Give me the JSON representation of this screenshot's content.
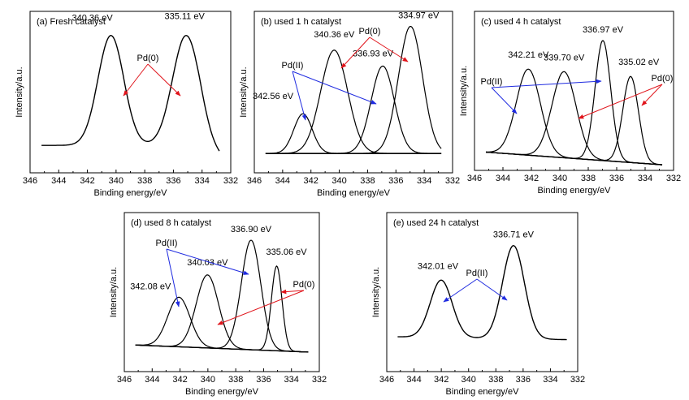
{
  "chart_data": [
    {
      "type": "line",
      "panel_label": "(a) Fresh catalyst",
      "xlabel": "Binding energy/eV",
      "ylabel": "Intensity/a.u.",
      "xlim": [
        346,
        332
      ],
      "xticks": [
        "346",
        "344",
        "342",
        "340",
        "338",
        "336",
        "334",
        "332"
      ],
      "x_reversed": true,
      "grid": false,
      "peaks": [
        {
          "center": 340.36,
          "label": "340.36 eV"
        },
        {
          "center": 335.11,
          "label": "335.11 eV"
        }
      ],
      "annotations": [
        {
          "text": "Pd(0)",
          "color": "#e0141b",
          "points_to": [
            340.36,
            335.11
          ]
        }
      ]
    },
    {
      "type": "line",
      "panel_label": "(b) used 1 h catalyst",
      "xlabel": "Binding energy/eV",
      "ylabel": "Intensity/a.u.",
      "xlim": [
        346,
        332
      ],
      "xticks": [
        "346",
        "344",
        "342",
        "340",
        "338",
        "336",
        "334",
        "332"
      ],
      "x_reversed": true,
      "grid": false,
      "peaks": [
        {
          "center": 342.56,
          "label": "342.56 eV",
          "state": "Pd(II)"
        },
        {
          "center": 340.36,
          "label": "340.36 eV",
          "state": "Pd(0)"
        },
        {
          "center": 336.93,
          "label": "336.93 eV",
          "state": "Pd(II)"
        },
        {
          "center": 334.97,
          "label": "334.97 eV",
          "state": "Pd(0)"
        }
      ],
      "annotations": [
        {
          "text": "Pd(II)",
          "color": "#1f2be0"
        },
        {
          "text": "Pd(0)",
          "color": "#e0141b"
        }
      ]
    },
    {
      "type": "line",
      "panel_label": "(c) used 4 h catalyst",
      "xlabel": "Binding energy/eV",
      "ylabel": "Intensity/a.u.",
      "xlim": [
        346,
        332
      ],
      "xticks": [
        "346",
        "344",
        "342",
        "340",
        "338",
        "336",
        "334",
        "332"
      ],
      "x_reversed": true,
      "grid": false,
      "peaks": [
        {
          "center": 342.21,
          "label": "342.21 eV",
          "state": "Pd(II)"
        },
        {
          "center": 339.7,
          "label": "339.70 eV",
          "state": "Pd(0)"
        },
        {
          "center": 336.97,
          "label": "336.97 eV",
          "state": "Pd(II)"
        },
        {
          "center": 335.02,
          "label": "335.02 eV",
          "state": "Pd(0)"
        }
      ],
      "annotations": [
        {
          "text": "Pd(II)",
          "color": "#1f2be0"
        },
        {
          "text": "Pd(0)",
          "color": "#e0141b"
        }
      ]
    },
    {
      "type": "line",
      "panel_label": "(d) used 8 h catalyst",
      "xlabel": "Binding energy/eV",
      "ylabel": "Intensity/a.u.",
      "xlim": [
        346,
        332
      ],
      "xticks": [
        "346",
        "344",
        "342",
        "340",
        "338",
        "336",
        "334",
        "332"
      ],
      "x_reversed": true,
      "grid": false,
      "peaks": [
        {
          "center": 342.08,
          "label": "342.08 eV",
          "state": "Pd(II)"
        },
        {
          "center": 340.03,
          "label": "340.03 eV",
          "state": "Pd(0)"
        },
        {
          "center": 336.9,
          "label": "336.90 eV",
          "state": "Pd(II)"
        },
        {
          "center": 335.06,
          "label": "335.06 eV",
          "state": "Pd(0)"
        }
      ],
      "annotations": [
        {
          "text": "Pd(II)",
          "color": "#1f2be0"
        },
        {
          "text": "Pd(0)",
          "color": "#e0141b"
        }
      ]
    },
    {
      "type": "line",
      "panel_label": "(e) used 24 h catalyst",
      "xlabel": "Binding energy/eV",
      "ylabel": "Intensity/a.u.",
      "xlim": [
        346,
        332
      ],
      "xticks": [
        "346",
        "344",
        "342",
        "340",
        "338",
        "336",
        "334",
        "332"
      ],
      "x_reversed": true,
      "grid": false,
      "peaks": [
        {
          "center": 342.01,
          "label": "342.01 eV"
        },
        {
          "center": 336.71,
          "label": "336.71 eV"
        }
      ],
      "annotations": [
        {
          "text": "Pd(II)",
          "color": "#1f2be0",
          "points_to": [
            342.01,
            336.71
          ]
        }
      ]
    }
  ]
}
